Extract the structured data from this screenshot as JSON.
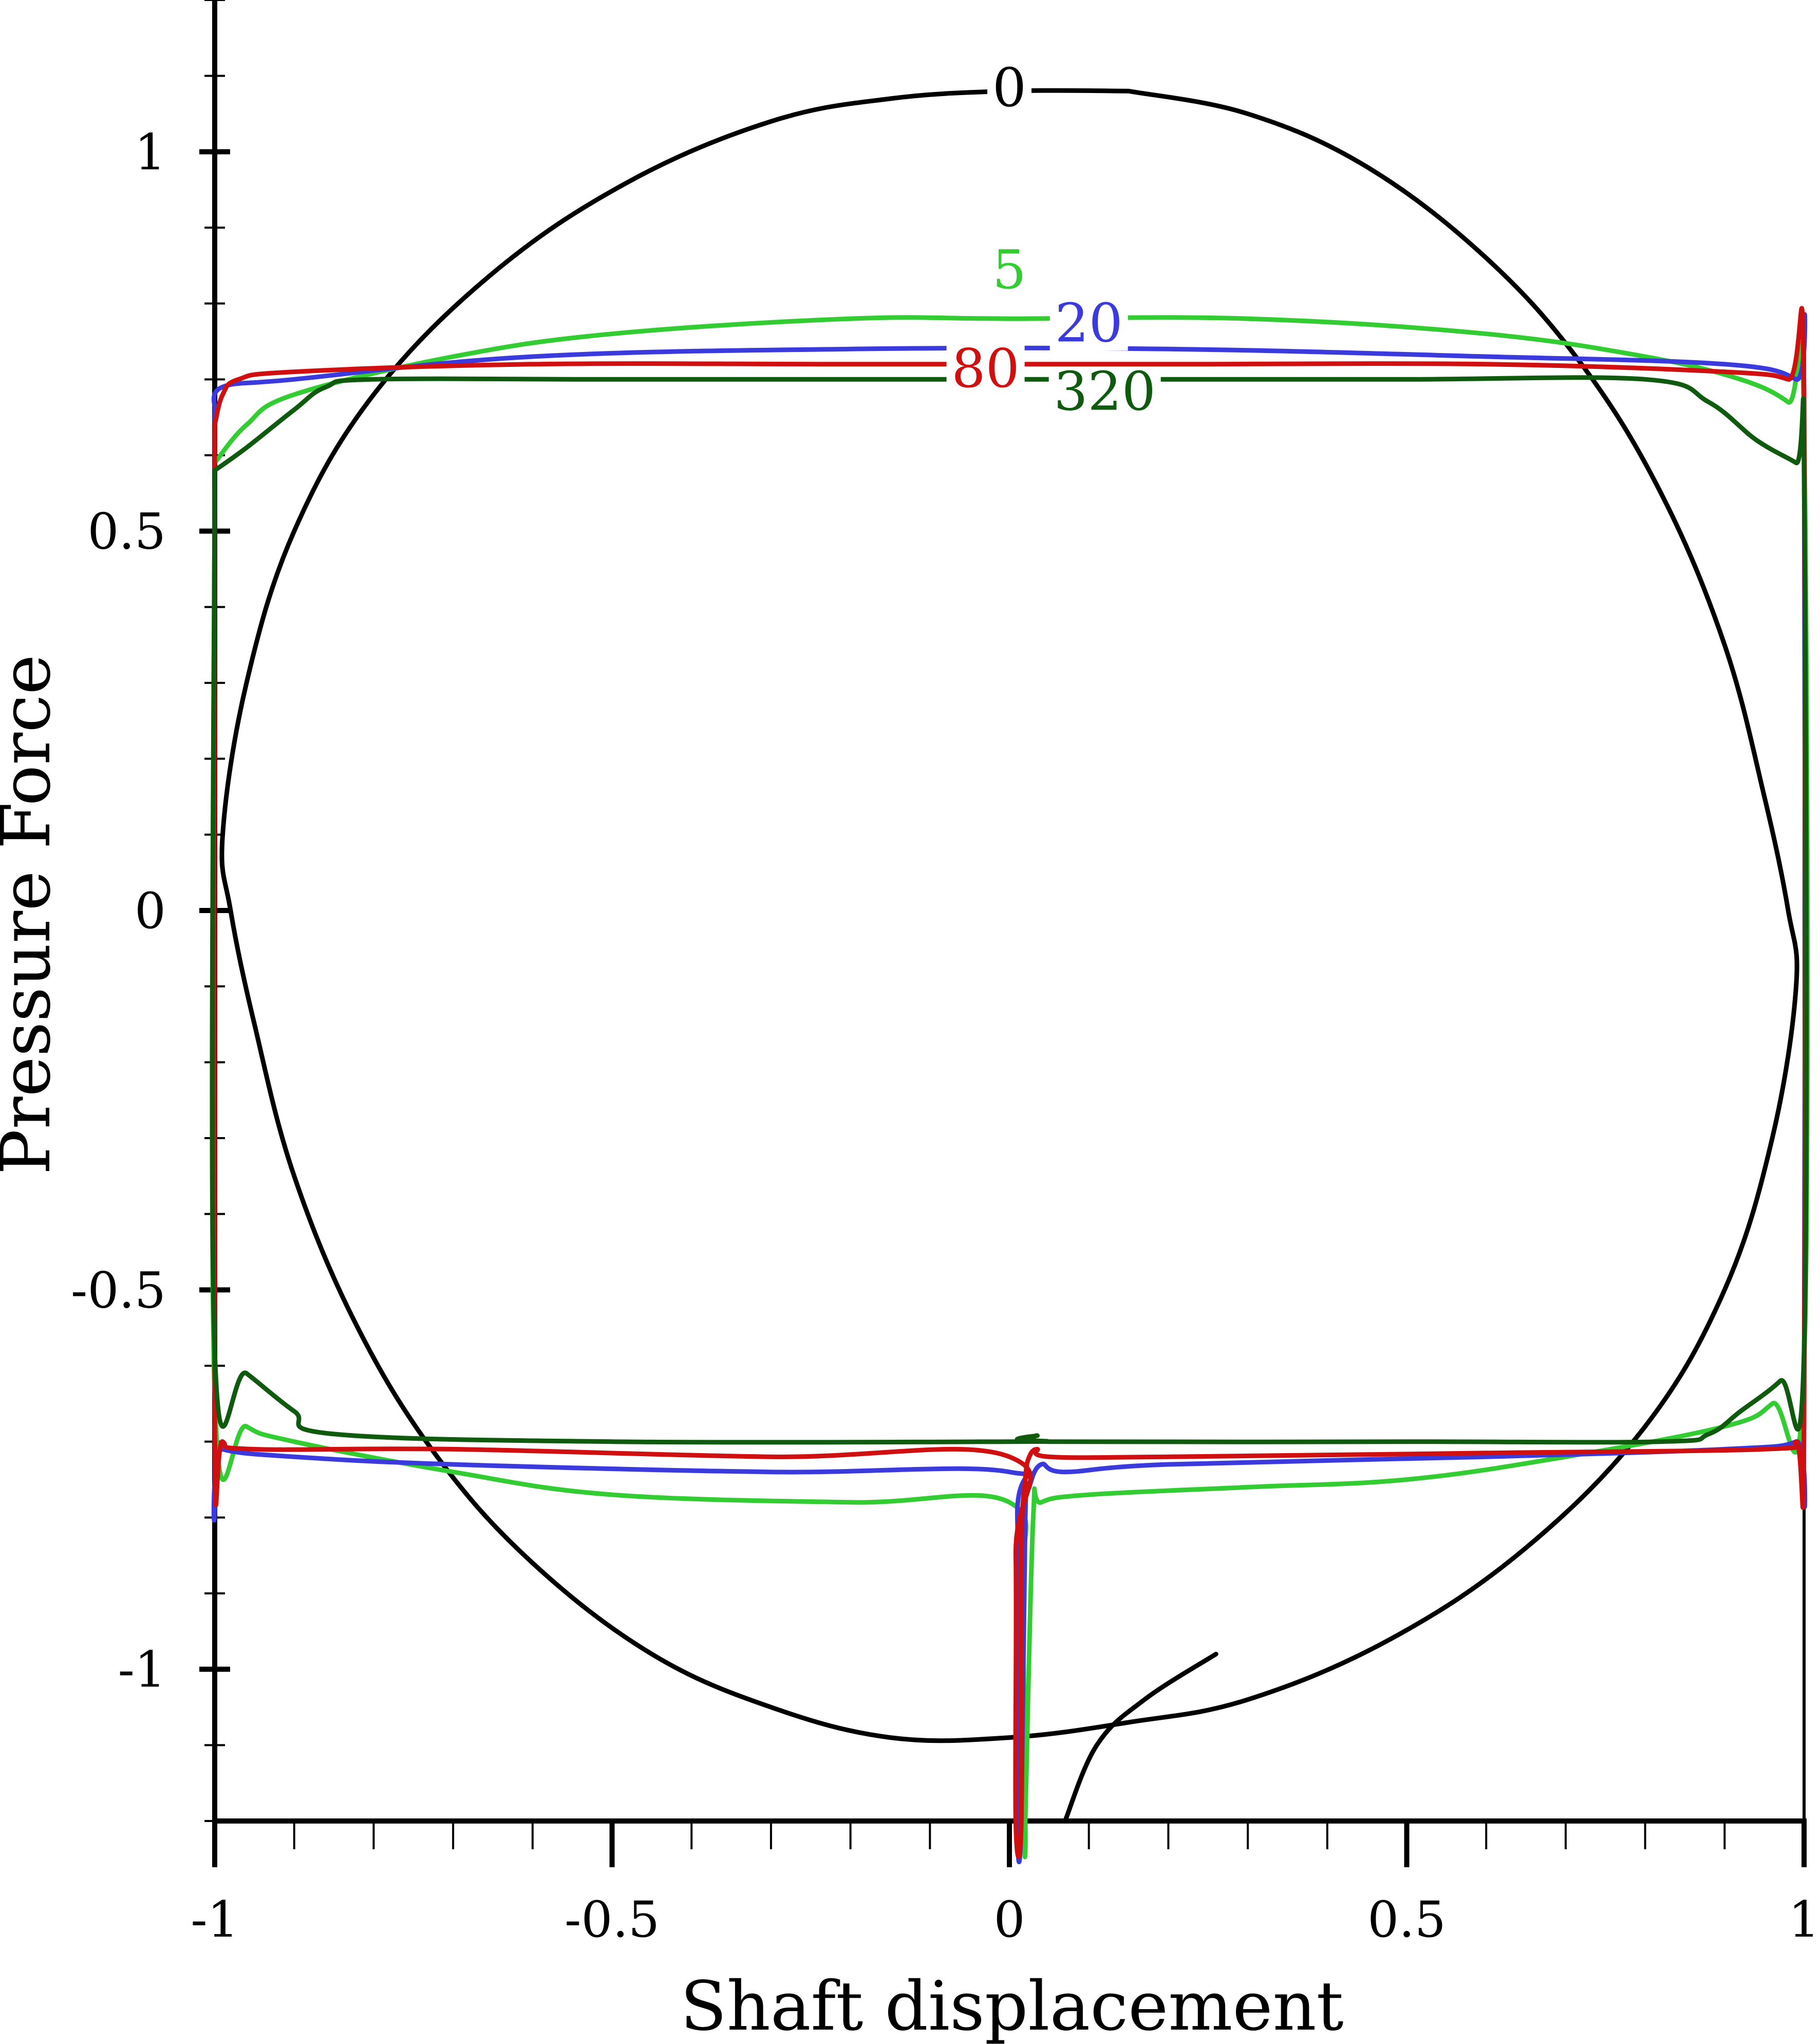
{
  "chart_data": {
    "type": "line",
    "title": "",
    "xlabel": "Shaft displacement",
    "ylabel": "Pressure Force",
    "xlim": [
      -1,
      1
    ],
    "ylim": [
      -1.2,
      1.2
    ],
    "grid": false,
    "x_ticks": [
      {
        "value": -1,
        "label": "-1"
      },
      {
        "value": -0.5,
        "label": "-0.5"
      },
      {
        "value": 0,
        "label": "0"
      },
      {
        "value": 0.5,
        "label": "0.5"
      },
      {
        "value": 1,
        "label": "1"
      }
    ],
    "y_ticks": [
      {
        "value": 1,
        "label": "1"
      },
      {
        "value": 0.5,
        "label": "0.5"
      },
      {
        "value": 0,
        "label": "0"
      },
      {
        "value": -0.5,
        "label": "-0.5"
      },
      {
        "value": -1,
        "label": "-1"
      }
    ],
    "series": [
      {
        "name": "0",
        "color": "#000000",
        "label_at": [
          0.0,
          1.06
        ],
        "points": [
          [
            0.15,
            1.08
          ],
          [
            0.3,
            1.05
          ],
          [
            0.45,
            0.98
          ],
          [
            0.6,
            0.86
          ],
          [
            0.72,
            0.72
          ],
          [
            0.82,
            0.55
          ],
          [
            0.9,
            0.35
          ],
          [
            0.95,
            0.15
          ],
          [
            0.98,
            0.0
          ],
          [
            0.99,
            -0.1
          ],
          [
            0.96,
            -0.3
          ],
          [
            0.9,
            -0.5
          ],
          [
            0.8,
            -0.68
          ],
          [
            0.65,
            -0.84
          ],
          [
            0.48,
            -0.96
          ],
          [
            0.3,
            -1.04
          ],
          [
            0.15,
            -1.07
          ],
          [
            0.0,
            -1.09
          ],
          [
            -0.15,
            -1.09
          ],
          [
            -0.3,
            -1.05
          ],
          [
            -0.45,
            -0.98
          ],
          [
            -0.6,
            -0.86
          ],
          [
            -0.72,
            -0.72
          ],
          [
            -0.82,
            -0.55
          ],
          [
            -0.9,
            -0.35
          ],
          [
            -0.95,
            -0.15
          ],
          [
            -0.98,
            0.0
          ],
          [
            -0.99,
            0.1
          ],
          [
            -0.96,
            0.3
          ],
          [
            -0.9,
            0.5
          ],
          [
            -0.8,
            0.68
          ],
          [
            -0.65,
            0.84
          ],
          [
            -0.48,
            0.96
          ],
          [
            -0.3,
            1.04
          ],
          [
            -0.15,
            1.07
          ],
          [
            0.0,
            1.08
          ],
          [
            0.15,
            1.08
          ]
        ]
      },
      {
        "name": "",
        "color": "#000000",
        "label_at": null,
        "points": [
          [
            0.07,
            -1.2
          ],
          [
            0.11,
            -1.1
          ],
          [
            0.17,
            -1.04
          ],
          [
            0.26,
            -0.98
          ]
        ]
      },
      {
        "name": "5",
        "color": "#33cc33",
        "label_at": [
          0.0,
          0.82
        ],
        "points": [
          [
            -1.0,
            0.59
          ],
          [
            -0.96,
            0.64
          ],
          [
            -0.9,
            0.68
          ],
          [
            -0.7,
            0.73
          ],
          [
            -0.5,
            0.76
          ],
          [
            -0.2,
            0.78
          ],
          [
            0.0,
            0.78
          ],
          [
            0.3,
            0.78
          ],
          [
            0.6,
            0.76
          ],
          [
            0.8,
            0.73
          ],
          [
            0.92,
            0.7
          ],
          [
            0.98,
            0.67
          ],
          [
            1.0,
            0.64
          ],
          [
            1.0,
            -0.6
          ],
          [
            0.96,
            -0.65
          ],
          [
            0.9,
            -0.68
          ],
          [
            0.7,
            -0.72
          ],
          [
            0.5,
            -0.75
          ],
          [
            0.3,
            -0.76
          ],
          [
            0.1,
            -0.77
          ],
          [
            0.04,
            -0.78
          ],
          [
            0.03,
            -0.8
          ],
          [
            0.02,
            -1.2
          ],
          [
            0.02,
            -1.2
          ],
          [
            0.015,
            -0.9
          ],
          [
            0.0,
            -0.78
          ],
          [
            -0.2,
            -0.78
          ],
          [
            -0.5,
            -0.77
          ],
          [
            -0.7,
            -0.74
          ],
          [
            -0.9,
            -0.7
          ],
          [
            -0.96,
            -0.68
          ],
          [
            -1.0,
            -0.64
          ],
          [
            -1.0,
            0.59
          ]
        ]
      },
      {
        "name": "20",
        "color": "#3b3bdd",
        "label_at": [
          0.1,
          0.75
        ],
        "points": [
          [
            -1.0,
            0.66
          ],
          [
            -0.99,
            0.69
          ],
          [
            -0.9,
            0.7
          ],
          [
            -0.6,
            0.73
          ],
          [
            -0.2,
            0.74
          ],
          [
            0.2,
            0.74
          ],
          [
            0.6,
            0.73
          ],
          [
            0.9,
            0.72
          ],
          [
            0.99,
            0.7
          ],
          [
            1.0,
            0.67
          ],
          [
            1.0,
            -0.67
          ],
          [
            0.99,
            -0.7
          ],
          [
            0.9,
            -0.71
          ],
          [
            0.6,
            -0.72
          ],
          [
            0.2,
            -0.73
          ],
          [
            0.07,
            -0.74
          ],
          [
            0.04,
            -0.73
          ],
          [
            0.025,
            -0.76
          ],
          [
            0.02,
            -0.8
          ],
          [
            0.015,
            -1.2
          ],
          [
            0.01,
            -1.2
          ],
          [
            0.01,
            -0.8
          ],
          [
            0.0,
            -0.74
          ],
          [
            -0.3,
            -0.74
          ],
          [
            -0.7,
            -0.73
          ],
          [
            -0.9,
            -0.72
          ],
          [
            -0.99,
            -0.71
          ],
          [
            -1.0,
            -0.69
          ],
          [
            -1.0,
            0.66
          ]
        ]
      },
      {
        "name": "80",
        "color": "#d01010",
        "label_at": [
          -0.03,
          0.69
        ],
        "points": [
          [
            -1.0,
            0.64
          ],
          [
            -0.99,
            0.68
          ],
          [
            -0.97,
            0.7
          ],
          [
            -0.9,
            0.71
          ],
          [
            -0.6,
            0.72
          ],
          [
            -0.2,
            0.72
          ],
          [
            0.2,
            0.72
          ],
          [
            0.6,
            0.72
          ],
          [
            0.9,
            0.71
          ],
          [
            0.98,
            0.7
          ],
          [
            1.0,
            0.68
          ],
          [
            1.0,
            -0.67
          ],
          [
            0.99,
            -0.7
          ],
          [
            0.95,
            -0.71
          ],
          [
            0.6,
            -0.715
          ],
          [
            0.2,
            -0.72
          ],
          [
            0.05,
            -0.72
          ],
          [
            0.035,
            -0.71
          ],
          [
            0.025,
            -0.72
          ],
          [
            0.02,
            -0.75
          ],
          [
            0.015,
            -0.85
          ],
          [
            0.015,
            -1.2
          ],
          [
            0.008,
            -1.2
          ],
          [
            0.008,
            -0.85
          ],
          [
            0.0,
            -0.72
          ],
          [
            -0.3,
            -0.72
          ],
          [
            -0.7,
            -0.71
          ],
          [
            -0.95,
            -0.71
          ],
          [
            -0.99,
            -0.7
          ],
          [
            -1.0,
            -0.67
          ],
          [
            -1.0,
            0.64
          ]
        ]
      },
      {
        "name": "320",
        "color": "#0f5a0f",
        "label_at": [
          0.12,
          0.66
        ],
        "points": [
          [
            -1.0,
            0.58
          ],
          [
            -0.96,
            0.61
          ],
          [
            -0.9,
            0.66
          ],
          [
            -0.86,
            0.69
          ],
          [
            -0.8,
            0.7
          ],
          [
            -0.5,
            0.7
          ],
          [
            -0.2,
            0.7
          ],
          [
            0.2,
            0.7
          ],
          [
            0.5,
            0.7
          ],
          [
            0.8,
            0.7
          ],
          [
            0.88,
            0.67
          ],
          [
            0.94,
            0.62
          ],
          [
            0.99,
            0.59
          ],
          [
            1.0,
            0.58
          ],
          [
            1.0,
            -0.58
          ],
          [
            0.97,
            -0.62
          ],
          [
            0.92,
            -0.66
          ],
          [
            0.88,
            -0.69
          ],
          [
            0.82,
            -0.7
          ],
          [
            0.5,
            -0.7
          ],
          [
            0.05,
            -0.7
          ],
          [
            0.035,
            -0.692
          ],
          [
            0.025,
            -0.698
          ],
          [
            0.0,
            -0.7
          ],
          [
            -0.5,
            -0.7
          ],
          [
            -0.85,
            -0.69
          ],
          [
            -0.9,
            -0.66
          ],
          [
            -0.96,
            -0.61
          ],
          [
            -1.0,
            -0.58
          ],
          [
            -1.0,
            0.58
          ]
        ]
      }
    ]
  }
}
